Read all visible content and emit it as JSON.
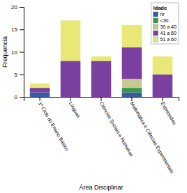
{
  "chart_data": {
    "type": "bar",
    "stacked": true,
    "categories": [
      "1º Ciclo do Ensino Básico",
      "Línguas",
      "Ciências Sociais e Humanas",
      "Matemática e Ciências Experimentais",
      "Expressões"
    ],
    "series": [
      {
        "name": "nr",
        "color": "#3a5ba0",
        "values": [
          1,
          0,
          0,
          1,
          0
        ]
      },
      {
        "name": "<30",
        "color": "#3a9a4a",
        "values": [
          0,
          0,
          0,
          1,
          0
        ]
      },
      {
        "name": "30 a 40",
        "color": "#c8c890",
        "values": [
          0,
          0,
          0,
          2,
          0
        ]
      },
      {
        "name": "41 a 50",
        "color": "#7b3fa0",
        "values": [
          1,
          8,
          8,
          7,
          5
        ]
      },
      {
        "name": "51 a 60",
        "color": "#e8e878",
        "values": [
          1,
          9,
          1,
          5,
          4
        ]
      }
    ],
    "legend_title": "Idade",
    "legend": "upper right",
    "xlabel": "Área Disciplinar",
    "ylabel": "Frequencia",
    "ylim": [
      0,
      20
    ],
    "yticks": [
      0,
      5,
      10,
      15,
      20
    ],
    "grid": false
  }
}
